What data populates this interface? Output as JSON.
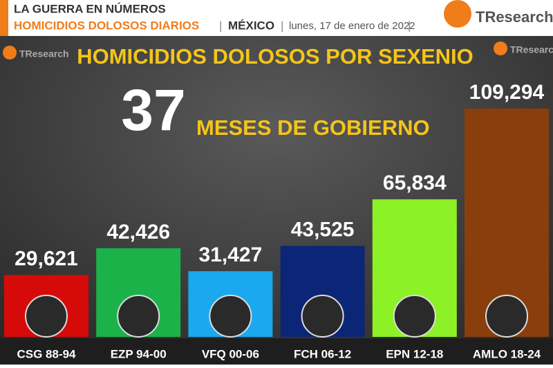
{
  "header": {
    "kicker": "LA GUERRA EN NÚMEROS",
    "subtitle": "HOMICIDIOS DOLOSOS DIARIOS",
    "country": "MÉXICO",
    "date": "lunes, 17 de enero de 2022",
    "logo": "TResearch"
  },
  "chart_data": {
    "type": "bar",
    "title": "HOMICIDIOS DOLOSOS POR SEXENIO",
    "highlight_number": 37,
    "highlight_text": "MESES DE GOBIERNO",
    "categories": [
      "CSG 88-94",
      "EZP 94-00",
      "VFQ 00-06",
      "FCH 06-12",
      "EPN 12-18",
      "AMLO 18-24"
    ],
    "values": [
      29621,
      42426,
      31427,
      43525,
      65834,
      109294
    ],
    "value_labels": [
      "29,621",
      "42,426",
      "31,427",
      "43,525",
      "65,834",
      "109,294"
    ],
    "colors": [
      "#d70a0a",
      "#1cb24a",
      "#1aa9ee",
      "#0b2577",
      "#8cf227",
      "#8a3e0c"
    ]
  }
}
